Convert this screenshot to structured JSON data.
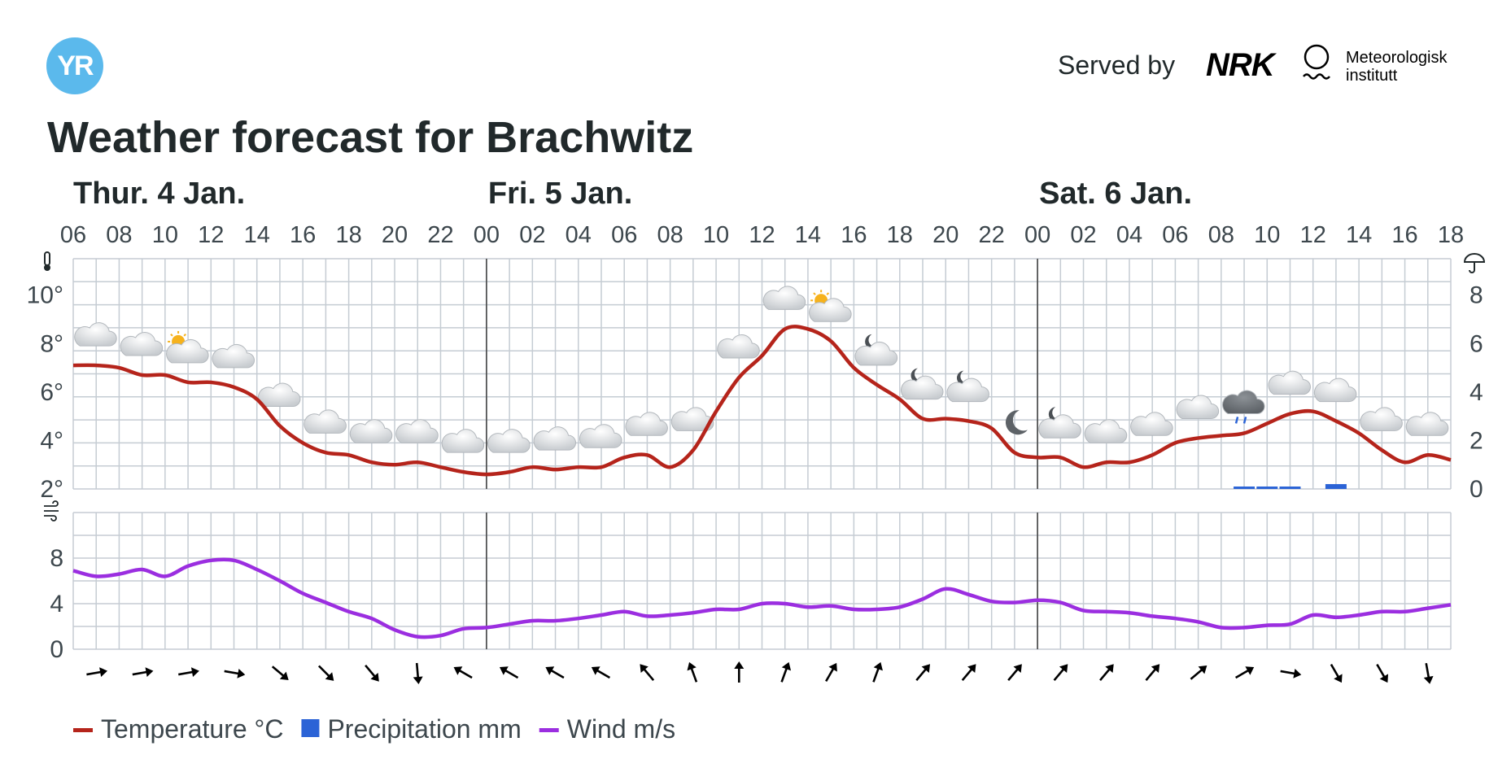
{
  "header": {
    "served_by": "Served by",
    "nrk_label": "NRK",
    "met_line1": "Meteorologisk",
    "met_line2": "institutt",
    "yr_label": "YR"
  },
  "page_title": "Weather forecast for Brachwitz",
  "chart_data": [
    {
      "type": "line",
      "title": "",
      "day_labels": [
        "Thur. 4 Jan.",
        "Fri. 5 Jan.",
        "Sat. 6 Jan."
      ],
      "x_ticks": [
        "06",
        "08",
        "10",
        "12",
        "14",
        "16",
        "18",
        "20",
        "22",
        "00",
        "02",
        "04",
        "06",
        "08",
        "10",
        "12",
        "14",
        "16",
        "18",
        "20",
        "22",
        "00",
        "02",
        "04",
        "06",
        "08",
        "10",
        "12",
        "14",
        "16",
        "18"
      ],
      "x_hours": [
        0,
        1,
        2,
        3,
        4,
        5,
        6,
        7,
        8,
        9,
        10,
        11,
        12,
        13,
        14,
        15,
        16,
        17,
        18,
        19,
        20,
        21,
        22,
        23,
        24,
        25,
        26,
        27,
        28,
        29,
        30,
        31,
        32,
        33,
        34,
        35,
        36,
        37,
        38,
        39,
        40,
        41,
        42,
        43,
        44,
        45,
        46,
        47,
        48,
        49,
        50,
        51,
        52,
        53,
        54,
        55,
        56,
        57,
        58,
        59,
        60
      ],
      "series": [
        {
          "name": "Temperature °C",
          "color": "#b5241b",
          "values": [
            7.1,
            7.1,
            7.0,
            6.7,
            6.7,
            6.4,
            6.4,
            6.2,
            5.7,
            4.6,
            3.9,
            3.5,
            3.4,
            3.1,
            3.0,
            3.1,
            2.9,
            2.7,
            2.6,
            2.7,
            2.9,
            2.8,
            2.9,
            2.9,
            3.3,
            3.4,
            2.9,
            3.6,
            5.2,
            6.6,
            7.5,
            8.6,
            8.6,
            8.1,
            7.0,
            6.3,
            5.7,
            4.9,
            4.9,
            4.8,
            4.5,
            3.5,
            3.3,
            3.3,
            2.9,
            3.1,
            3.1,
            3.4,
            3.9,
            4.1,
            4.2,
            4.3,
            4.7,
            5.1,
            5.2,
            4.8,
            4.3,
            3.6,
            3.1,
            3.4,
            3.2
          ]
        },
        {
          "name": "Precipitation mm",
          "color": "#2b63d6",
          "hours": [
            51,
            52,
            53,
            55
          ],
          "values": [
            0.1,
            0.1,
            0.1,
            0.2
          ]
        }
      ],
      "y_ticks_left": [
        "2°",
        "4°",
        "6°",
        "8°",
        "10°"
      ],
      "y_ticks_right": [
        "0",
        "2",
        "4",
        "6",
        "8"
      ],
      "ylim_left": [
        2,
        11.5
      ],
      "ylim_right": [
        0,
        9.5
      ],
      "weather_symbols": [
        {
          "hour": 1,
          "symbol": "cloud"
        },
        {
          "hour": 3,
          "symbol": "cloud"
        },
        {
          "hour": 5,
          "symbol": "partly-cloudy-day"
        },
        {
          "hour": 7,
          "symbol": "cloud"
        },
        {
          "hour": 9,
          "symbol": "cloud"
        },
        {
          "hour": 11,
          "symbol": "cloud"
        },
        {
          "hour": 13,
          "symbol": "cloud"
        },
        {
          "hour": 15,
          "symbol": "cloud"
        },
        {
          "hour": 17,
          "symbol": "cloud"
        },
        {
          "hour": 19,
          "symbol": "cloud"
        },
        {
          "hour": 21,
          "symbol": "cloud"
        },
        {
          "hour": 23,
          "symbol": "cloud"
        },
        {
          "hour": 25,
          "symbol": "cloud"
        },
        {
          "hour": 27,
          "symbol": "cloud"
        },
        {
          "hour": 29,
          "symbol": "cloud"
        },
        {
          "hour": 31,
          "symbol": "cloud"
        },
        {
          "hour": 33,
          "symbol": "partly-cloudy-day"
        },
        {
          "hour": 35,
          "symbol": "partly-cloudy-night"
        },
        {
          "hour": 37,
          "symbol": "partly-cloudy-night"
        },
        {
          "hour": 39,
          "symbol": "partly-cloudy-night"
        },
        {
          "hour": 41,
          "symbol": "moon"
        },
        {
          "hour": 43,
          "symbol": "partly-cloudy-night"
        },
        {
          "hour": 45,
          "symbol": "cloud"
        },
        {
          "hour": 47,
          "symbol": "cloud"
        },
        {
          "hour": 49,
          "symbol": "cloud"
        },
        {
          "hour": 51,
          "symbol": "rain-cloud"
        },
        {
          "hour": 53,
          "symbol": "cloud"
        },
        {
          "hour": 55,
          "symbol": "cloud"
        },
        {
          "hour": 57,
          "symbol": "cloud"
        },
        {
          "hour": 59,
          "symbol": "cloud"
        }
      ],
      "temperature_icon": "thermometer-icon",
      "precipitation_icon": "umbrella-icon",
      "grid": true
    },
    {
      "type": "line",
      "title": "",
      "series": [
        {
          "name": "Wind m/s",
          "color": "#9b2ee0",
          "values": [
            6.9,
            6.4,
            6.6,
            7.0,
            6.4,
            7.3,
            7.8,
            7.8,
            7.0,
            6.0,
            4.9,
            4.1,
            3.3,
            2.7,
            1.7,
            1.1,
            1.2,
            1.8,
            1.9,
            2.2,
            2.5,
            2.5,
            2.7,
            3.0,
            3.3,
            2.9,
            3.0,
            3.2,
            3.5,
            3.5,
            4.0,
            4.0,
            3.7,
            3.8,
            3.5,
            3.5,
            3.7,
            4.4,
            5.3,
            4.8,
            4.2,
            4.1,
            4.3,
            4.1,
            3.4,
            3.3,
            3.2,
            2.9,
            2.7,
            2.4,
            1.9,
            1.9,
            2.1,
            2.2,
            3.0,
            2.8,
            3.0,
            3.3,
            3.3,
            3.6,
            3.9
          ]
        }
      ],
      "y_ticks": [
        "0",
        "4",
        "8"
      ],
      "ylim": [
        0,
        12
      ],
      "wind_direction_degrees": [
        80,
        80,
        80,
        100,
        130,
        135,
        140,
        175,
        300,
        300,
        300,
        300,
        320,
        340,
        0,
        20,
        30,
        20,
        40,
        40,
        40,
        40,
        40,
        40,
        50,
        60,
        100,
        150,
        150,
        170
      ],
      "wind_icon": "wind-icon",
      "grid": true
    }
  ],
  "legend": [
    {
      "label": "Temperature °C",
      "color": "#b5241b",
      "marker": "line"
    },
    {
      "label": "Precipitation mm",
      "color": "#2b63d6",
      "marker": "square"
    },
    {
      "label": "Wind m/s",
      "color": "#9b2ee0",
      "marker": "line"
    }
  ]
}
